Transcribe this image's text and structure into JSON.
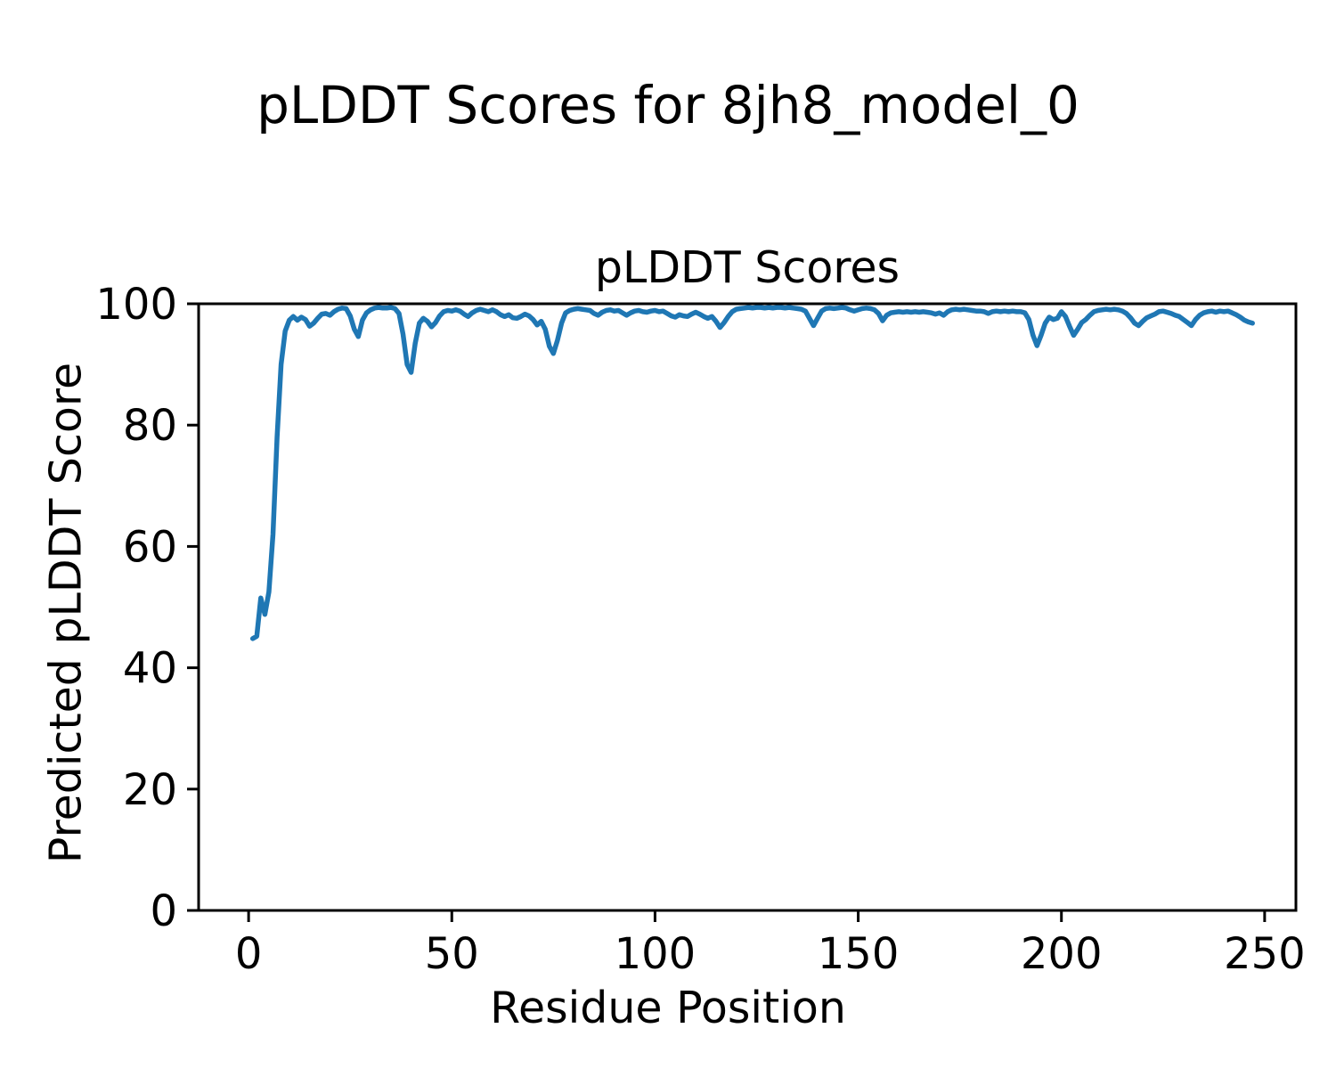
{
  "figure": {
    "suptitle": "pLDDT Scores for 8jh8_model_0"
  },
  "chart_data": {
    "type": "line",
    "title": "pLDDT Scores",
    "xlabel": "Residue Position",
    "ylabel": "Predicted pLDDT Score",
    "xlim": [
      -12.3,
      257.7
    ],
    "ylim": [
      0,
      100
    ],
    "xticks": [
      0,
      50,
      100,
      150,
      200,
      250
    ],
    "yticks": [
      0,
      20,
      40,
      60,
      80,
      100
    ],
    "grid": false,
    "legend_position": "none",
    "line_color": "#1f77b4",
    "line_width": 5.5,
    "series": [
      {
        "name": "pLDDT",
        "x_start": 1,
        "x_step": 1,
        "values": [
          44.8,
          45.2,
          51.5,
          48.8,
          52.5,
          62.0,
          78.0,
          90.0,
          95.5,
          97.3,
          97.9,
          97.3,
          97.8,
          97.4,
          96.3,
          96.8,
          97.6,
          98.3,
          98.4,
          98.1,
          98.7,
          99.1,
          99.3,
          99.2,
          98.0,
          95.8,
          94.6,
          97.3,
          98.5,
          99.0,
          99.3,
          99.4,
          99.3,
          99.3,
          99.4,
          99.2,
          98.4,
          95.0,
          90.0,
          88.7,
          93.5,
          96.8,
          97.6,
          97.1,
          96.2,
          96.9,
          98.0,
          98.7,
          98.9,
          98.8,
          99.0,
          98.8,
          98.3,
          97.9,
          98.5,
          98.9,
          99.1,
          98.9,
          98.7,
          99.0,
          98.7,
          98.2,
          97.9,
          98.2,
          97.7,
          97.6,
          97.9,
          98.3,
          98.0,
          97.4,
          96.5,
          97.1,
          95.8,
          93.0,
          91.8,
          94.0,
          96.8,
          98.5,
          98.9,
          99.1,
          99.2,
          99.1,
          99.0,
          98.9,
          98.4,
          98.1,
          98.6,
          98.9,
          99.0,
          98.8,
          98.9,
          98.5,
          98.1,
          98.5,
          98.8,
          98.9,
          98.7,
          98.6,
          98.8,
          98.9,
          98.7,
          98.8,
          98.4,
          98.0,
          97.8,
          98.2,
          98.0,
          97.9,
          98.3,
          98.6,
          98.3,
          97.9,
          97.6,
          97.9,
          97.1,
          96.1,
          96.9,
          97.9,
          98.7,
          99.1,
          99.2,
          99.3,
          99.4,
          99.3,
          99.4,
          99.4,
          99.3,
          99.4,
          99.3,
          99.4,
          99.4,
          99.3,
          99.4,
          99.3,
          99.2,
          99.1,
          98.8,
          97.6,
          96.4,
          97.6,
          98.8,
          99.2,
          99.3,
          99.2,
          99.3,
          99.4,
          99.3,
          99.0,
          98.8,
          99.0,
          99.2,
          99.3,
          99.2,
          99.0,
          98.4,
          97.2,
          98.1,
          98.5,
          98.6,
          98.7,
          98.6,
          98.7,
          98.6,
          98.7,
          98.6,
          98.7,
          98.6,
          98.5,
          98.3,
          98.5,
          98.1,
          98.7,
          99.0,
          99.1,
          99.0,
          99.1,
          99.0,
          98.9,
          98.8,
          98.8,
          98.7,
          98.4,
          98.7,
          98.8,
          98.7,
          98.8,
          98.7,
          98.8,
          98.7,
          98.7,
          98.5,
          97.4,
          94.8,
          93.1,
          94.8,
          96.8,
          97.8,
          97.4,
          97.6,
          98.7,
          97.9,
          96.3,
          94.8,
          95.8,
          96.9,
          97.4,
          98.1,
          98.7,
          98.9,
          99.0,
          99.1,
          99.0,
          99.1,
          99.0,
          98.8,
          98.4,
          97.7,
          96.8,
          96.4,
          97.1,
          97.7,
          98.0,
          98.3,
          98.7,
          98.8,
          98.6,
          98.4,
          98.1,
          97.9,
          97.4,
          96.9,
          96.4,
          97.4,
          98.1,
          98.5,
          98.7,
          98.8,
          98.6,
          98.8,
          98.7,
          98.8,
          98.5,
          98.2,
          97.8,
          97.3,
          97.0,
          96.8
        ]
      }
    ]
  }
}
